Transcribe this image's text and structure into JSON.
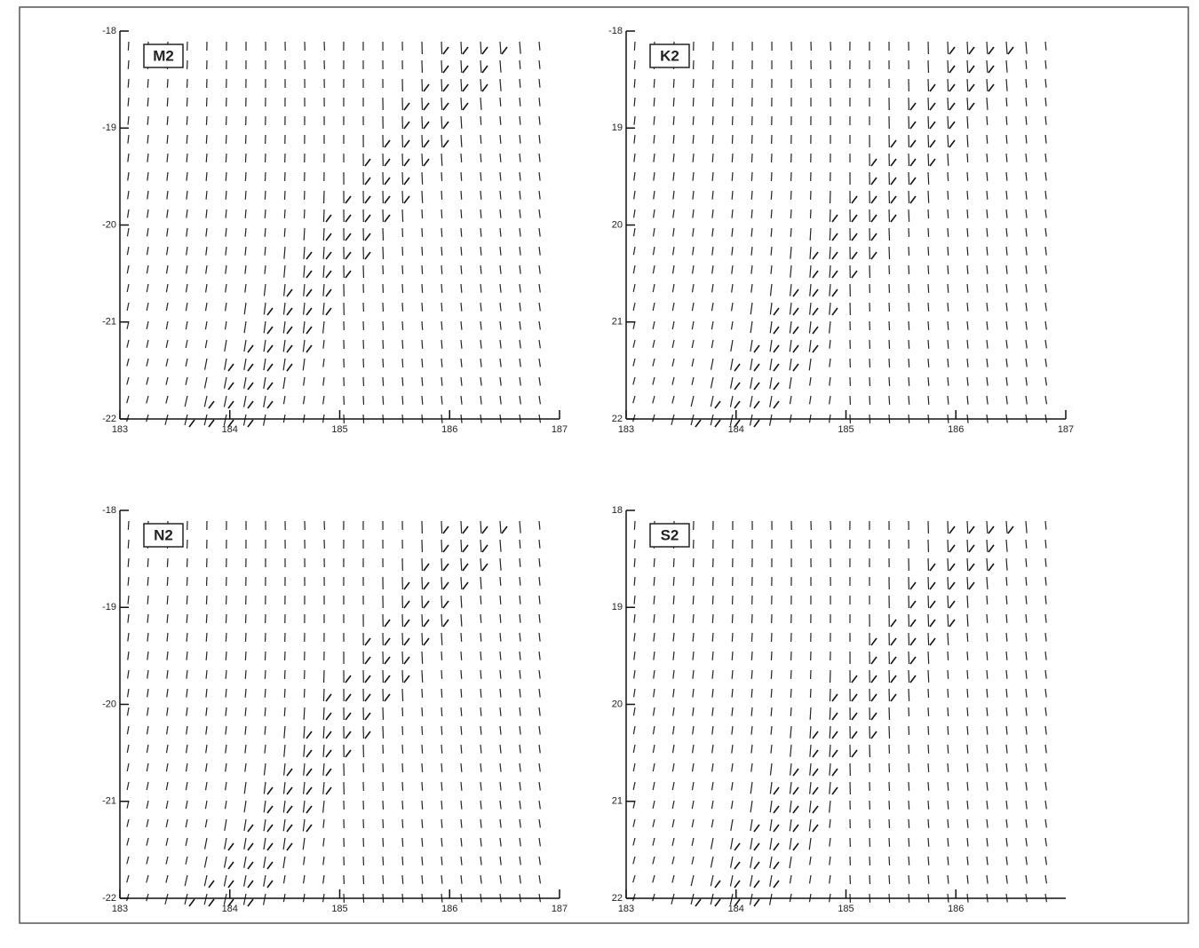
{
  "chart_data": [
    {
      "type": "quiver",
      "title": "M2",
      "xlim": [
        183,
        187
      ],
      "ylim": [
        -22,
        -18
      ],
      "xticks": [
        183,
        184,
        185,
        186,
        187
      ],
      "yticks": [
        -18,
        -19,
        -20,
        -21,
        -22
      ]
    },
    {
      "type": "quiver",
      "title": "K2",
      "xlim": [
        183,
        187
      ],
      "ylim": [
        -22,
        -18
      ],
      "xticks": [
        183,
        184,
        185,
        186,
        187
      ],
      "yticks": [
        -18,
        {
          "value": -19,
          "label": "19"
        },
        {
          "value": -20,
          "label": "20"
        },
        {
          "value": -21,
          "label": "21"
        },
        {
          "value": -22,
          "label": "22"
        }
      ]
    },
    {
      "type": "quiver",
      "title": "N2",
      "xlim": [
        183,
        187
      ],
      "ylim": [
        -22,
        -18
      ],
      "xticks": [
        183,
        184,
        185,
        186,
        187
      ],
      "yticks": [
        -18,
        -19,
        -20,
        -21,
        -22
      ]
    },
    {
      "type": "quiver",
      "title": "S2",
      "xlim": [
        183,
        187
      ],
      "ylim": [
        -22,
        -18
      ],
      "xticks": [
        183,
        184,
        185,
        186
      ],
      "yticks": [
        {
          "value": -18,
          "label": "18"
        },
        {
          "value": -19,
          "label": "19"
        },
        {
          "value": -20,
          "label": "20"
        },
        {
          "value": -21,
          "label": "21"
        },
        {
          "value": -22,
          "label": "22"
        }
      ]
    }
  ]
}
